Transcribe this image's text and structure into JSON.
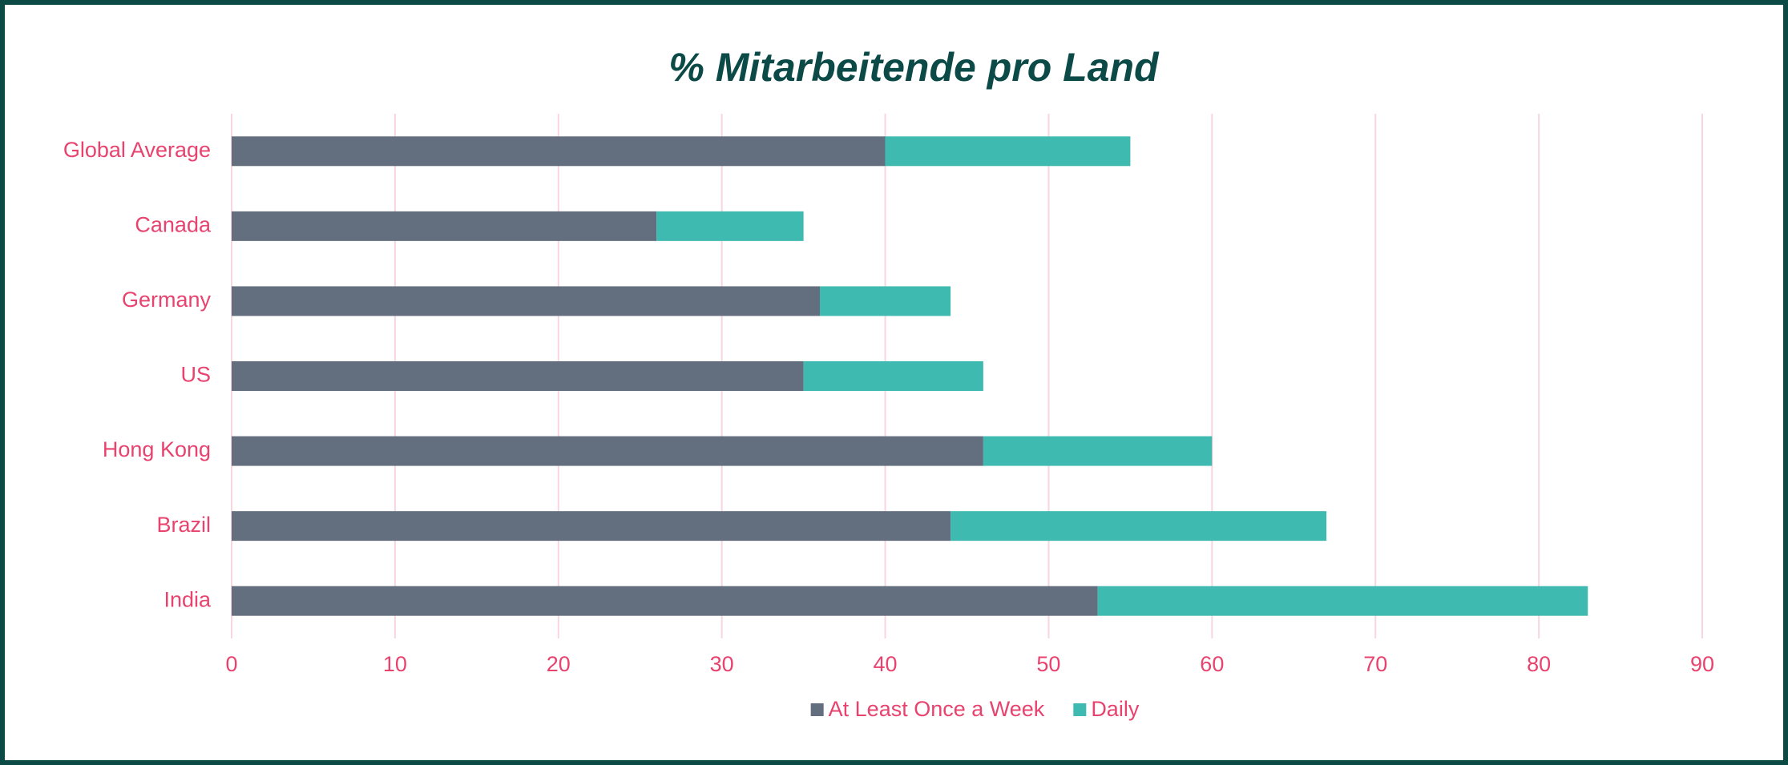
{
  "chart_data": {
    "type": "stacked_barh",
    "title": "% Mitarbeitende pro Land",
    "categories": [
      "Global Average",
      "Canada",
      "Germany",
      "US",
      "Hong Kong",
      "Brazil",
      "India"
    ],
    "series": [
      {
        "name": "At Least Once a Week",
        "color": "#636e7f",
        "values": [
          40,
          26,
          36,
          35,
          46,
          44,
          53
        ]
      },
      {
        "name": "Daily",
        "color": "#3fbab1",
        "values": [
          15,
          9,
          8,
          11,
          14,
          23,
          30
        ]
      }
    ],
    "xlim": [
      0,
      90
    ],
    "xticks": [
      0,
      10,
      20,
      30,
      40,
      50,
      60,
      70,
      80,
      90
    ],
    "grid": true,
    "legend": "bottom"
  }
}
